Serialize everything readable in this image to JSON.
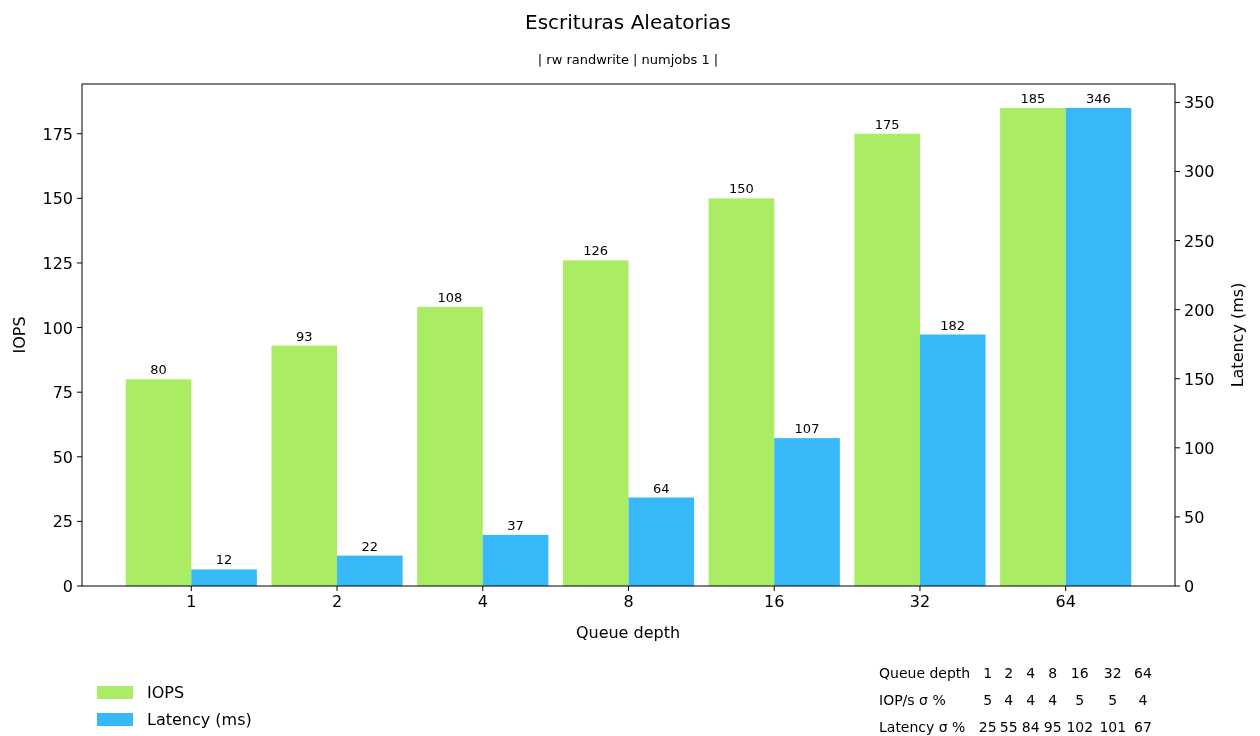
{
  "chart_data": {
    "type": "bar",
    "title": "Escrituras Aleatorias",
    "subtitle": "| rw randwrite | numjobs 1 |",
    "xlabel": "Queue depth",
    "ylabel": "IOPS",
    "y2label": "Latency (ms)",
    "categories": [
      "1",
      "2",
      "4",
      "8",
      "16",
      "32",
      "64"
    ],
    "series": [
      {
        "name": "IOPS",
        "color": "#aaec64",
        "values": [
          80,
          93,
          108,
          126,
          150,
          175,
          185
        ]
      },
      {
        "name": "Latency (ms)",
        "color": "#36b8f9",
        "axis": "y2",
        "values": [
          12,
          22,
          37,
          64,
          107,
          182,
          346
        ]
      }
    ],
    "ylim": [
      0,
      194.25
    ],
    "yticks": [
      0,
      25,
      50,
      75,
      100,
      125,
      150,
      175
    ],
    "y2lim": [
      0,
      363.3
    ],
    "y2ticks": [
      0,
      50,
      100,
      150,
      200,
      250,
      300,
      350
    ],
    "data_labels": true,
    "legend": "bottom left",
    "grid": false,
    "annotations": [
      "Queue depth 1 2 4 8 16 32 64",
      "IOP/s σ % 5 4 4 4 5 5 4",
      "Latency σ % 25 55 84 95 102 101 67"
    ]
  }
}
